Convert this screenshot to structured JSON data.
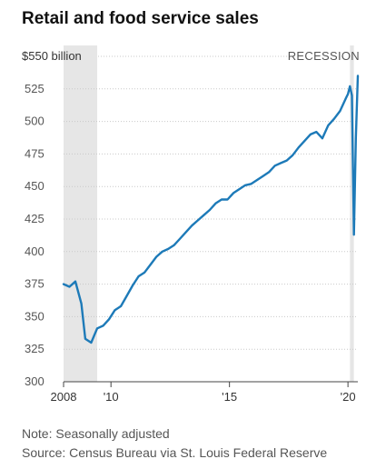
{
  "chart_data": {
    "type": "line",
    "title": "Retail and food service sales",
    "y_unit_label": "$550 billion",
    "recession_label": "RECESSION",
    "ylim": [
      300,
      550
    ],
    "y_ticks": [
      300,
      325,
      350,
      375,
      400,
      425,
      450,
      475,
      500,
      525
    ],
    "y_tick_labels": [
      "300",
      "325",
      "350",
      "375",
      "400",
      "425",
      "450",
      "475",
      "500",
      "525"
    ],
    "x_ticks": [
      2008,
      2010,
      2015,
      2020
    ],
    "x_tick_labels": [
      "2008",
      "'10",
      "'15",
      "'20"
    ],
    "xlim": [
      "2008-01",
      "2020-06"
    ],
    "grid": true,
    "recessions": [
      [
        "2008-01",
        "2009-06"
      ],
      [
        "2020-02",
        "2020-04"
      ]
    ],
    "line_color": "#1d7ab8",
    "recession_color": "#e6e6e6",
    "x": [
      "2008-01",
      "2008-04",
      "2008-07",
      "2008-10",
      "2008-12",
      "2009-03",
      "2009-06",
      "2009-09",
      "2009-12",
      "2010-03",
      "2010-06",
      "2010-09",
      "2010-12",
      "2011-03",
      "2011-06",
      "2011-09",
      "2011-12",
      "2012-03",
      "2012-06",
      "2012-09",
      "2012-12",
      "2013-03",
      "2013-06",
      "2013-09",
      "2013-12",
      "2014-03",
      "2014-06",
      "2014-09",
      "2014-12",
      "2015-03",
      "2015-06",
      "2015-09",
      "2015-12",
      "2016-03",
      "2016-06",
      "2016-09",
      "2016-12",
      "2017-03",
      "2017-06",
      "2017-09",
      "2017-12",
      "2018-03",
      "2018-06",
      "2018-09",
      "2018-12",
      "2019-03",
      "2019-06",
      "2019-09",
      "2019-12",
      "2020-01",
      "2020-02",
      "2020-03",
      "2020-04",
      "2020-05",
      "2020-06"
    ],
    "values": [
      375,
      373,
      377,
      360,
      333,
      330,
      341,
      343,
      348,
      355,
      358,
      366,
      374,
      381,
      384,
      390,
      396,
      400,
      402,
      405,
      410,
      415,
      420,
      424,
      428,
      432,
      437,
      440,
      440,
      445,
      448,
      451,
      452,
      455,
      458,
      461,
      466,
      468,
      470,
      474,
      480,
      485,
      490,
      492,
      487,
      497,
      502,
      508,
      518,
      521,
      527,
      520,
      413,
      487,
      535
    ]
  },
  "notes": {
    "note": "Note: Seasonally adjusted",
    "source": "Source: Census Bureau via St. Louis Federal Reserve"
  }
}
